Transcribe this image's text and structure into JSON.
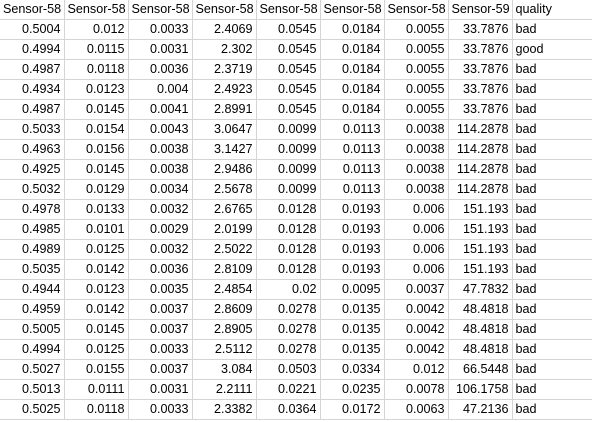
{
  "headers": [
    "Sensor-58",
    "Sensor-58",
    "Sensor-58",
    "Sensor-58",
    "Sensor-58",
    "Sensor-58",
    "Sensor-58",
    "Sensor-59",
    "quality"
  ],
  "rows": [
    [
      "0.5004",
      "0.012",
      "0.0033",
      "2.4069",
      "0.0545",
      "0.0184",
      "0.0055",
      "33.7876",
      "bad"
    ],
    [
      "0.4994",
      "0.0115",
      "0.0031",
      "2.302",
      "0.0545",
      "0.0184",
      "0.0055",
      "33.7876",
      "good"
    ],
    [
      "0.4987",
      "0.0118",
      "0.0036",
      "2.3719",
      "0.0545",
      "0.0184",
      "0.0055",
      "33.7876",
      "bad"
    ],
    [
      "0.4934",
      "0.0123",
      "0.004",
      "2.4923",
      "0.0545",
      "0.0184",
      "0.0055",
      "33.7876",
      "bad"
    ],
    [
      "0.4987",
      "0.0145",
      "0.0041",
      "2.8991",
      "0.0545",
      "0.0184",
      "0.0055",
      "33.7876",
      "bad"
    ],
    [
      "0.5033",
      "0.0154",
      "0.0043",
      "3.0647",
      "0.0099",
      "0.0113",
      "0.0038",
      "114.2878",
      "bad"
    ],
    [
      "0.4963",
      "0.0156",
      "0.0038",
      "3.1427",
      "0.0099",
      "0.0113",
      "0.0038",
      "114.2878",
      "bad"
    ],
    [
      "0.4925",
      "0.0145",
      "0.0038",
      "2.9486",
      "0.0099",
      "0.0113",
      "0.0038",
      "114.2878",
      "bad"
    ],
    [
      "0.5032",
      "0.0129",
      "0.0034",
      "2.5678",
      "0.0099",
      "0.0113",
      "0.0038",
      "114.2878",
      "bad"
    ],
    [
      "0.4978",
      "0.0133",
      "0.0032",
      "2.6765",
      "0.0128",
      "0.0193",
      "0.006",
      "151.193",
      "bad"
    ],
    [
      "0.4985",
      "0.0101",
      "0.0029",
      "2.0199",
      "0.0128",
      "0.0193",
      "0.006",
      "151.193",
      "bad"
    ],
    [
      "0.4989",
      "0.0125",
      "0.0032",
      "2.5022",
      "0.0128",
      "0.0193",
      "0.006",
      "151.193",
      "bad"
    ],
    [
      "0.5035",
      "0.0142",
      "0.0036",
      "2.8109",
      "0.0128",
      "0.0193",
      "0.006",
      "151.193",
      "bad"
    ],
    [
      "0.4944",
      "0.0123",
      "0.0035",
      "2.4854",
      "0.02",
      "0.0095",
      "0.0037",
      "47.7832",
      "bad"
    ],
    [
      "0.4959",
      "0.0142",
      "0.0037",
      "2.8609",
      "0.0278",
      "0.0135",
      "0.0042",
      "48.4818",
      "bad"
    ],
    [
      "0.5005",
      "0.0145",
      "0.0037",
      "2.8905",
      "0.0278",
      "0.0135",
      "0.0042",
      "48.4818",
      "bad"
    ],
    [
      "0.4994",
      "0.0125",
      "0.0033",
      "2.5112",
      "0.0278",
      "0.0135",
      "0.0042",
      "48.4818",
      "bad"
    ],
    [
      "0.5027",
      "0.0155",
      "0.0037",
      "3.084",
      "0.0503",
      "0.0334",
      "0.012",
      "66.5448",
      "bad"
    ],
    [
      "0.5013",
      "0.0111",
      "0.0031",
      "2.2111",
      "0.0221",
      "0.0235",
      "0.0078",
      "106.1758",
      "bad"
    ],
    [
      "0.5025",
      "0.0118",
      "0.0033",
      "2.3382",
      "0.0364",
      "0.0172",
      "0.0063",
      "47.2136",
      "bad"
    ]
  ],
  "colors": {
    "gridline": "#d4d4d4",
    "background": "#ffffff",
    "text": "#000000"
  }
}
